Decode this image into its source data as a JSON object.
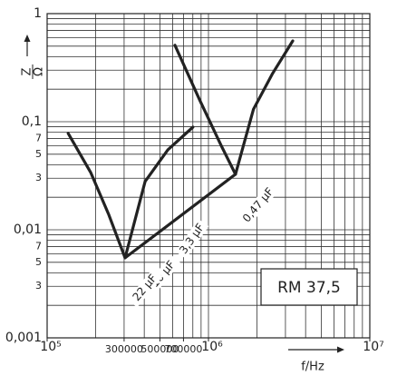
{
  "chart_data": {
    "type": "line",
    "xlabel": "f/Hz",
    "ylabel_num": "Z",
    "ylabel_den": "Ω",
    "box_text": "RM 37,5",
    "log_x": true,
    "log_y": true,
    "grid": true,
    "xlim": [
      100000,
      10000000
    ],
    "ylim": [
      0.001,
      1
    ],
    "xticks": [
      {
        "value": 100000,
        "label": "10⁵"
      },
      300000,
      500000,
      700000,
      {
        "value": 1000000,
        "label": "10⁶"
      },
      {
        "value": 10000000,
        "label": "10⁷"
      }
    ],
    "xticks_labels_short": [
      "3",
      "5",
      "7"
    ],
    "yticks": [
      1,
      {
        "value": 0.1,
        "label": "0,1"
      },
      {
        "value": 0.07,
        "label": "7"
      },
      {
        "value": 0.05,
        "label": "5"
      },
      {
        "value": 0.03,
        "label": "3"
      },
      {
        "value": 0.01,
        "label": "0,01"
      },
      {
        "value": 0.007,
        "label": "7"
      },
      {
        "value": 0.005,
        "label": "5"
      },
      {
        "value": 0.003,
        "label": "3"
      },
      {
        "value": 0.001,
        "label": "0,001"
      }
    ],
    "minor_xticks": [
      200000,
      300000,
      400000,
      500000,
      600000,
      700000,
      800000,
      900000,
      1000000,
      2000000,
      3000000,
      4000000,
      5000000,
      6000000,
      7000000,
      8000000,
      9000000
    ],
    "minor_yticks": [
      0.002,
      0.003,
      0.004,
      0.005,
      0.006,
      0.007,
      0.008,
      0.009,
      0.01,
      0.02,
      0.03,
      0.04,
      0.05,
      0.06,
      0.07,
      0.08,
      0.09,
      0.1,
      0.2,
      0.3,
      0.4,
      0.5,
      0.6,
      0.7,
      0.8,
      0.9
    ],
    "series": [
      {
        "color": "#222222",
        "x": [
          135000,
          186000,
          240000,
          304000,
          405000,
          560000,
          800000
        ],
        "values": [
          0.078,
          0.034,
          0.014,
          0.0055,
          0.028,
          0.055,
          0.089
        ]
      },
      {
        "color": "#222222",
        "x": [
          620000,
          880000,
          1200000,
          1470000,
          1900000,
          2500000,
          3330000
        ],
        "values": [
          0.51,
          0.16,
          0.06,
          0.0326,
          0.13,
          0.28,
          0.56
        ]
      },
      {
        "color": "#222222",
        "x": [
          304000,
          1470000
        ],
        "values": [
          0.0055,
          0.0326
        ]
      }
    ],
    "annotations": [
      "0,47 µF",
      "3,3 µF",
      "10 µF",
      "22 µF"
    ]
  }
}
